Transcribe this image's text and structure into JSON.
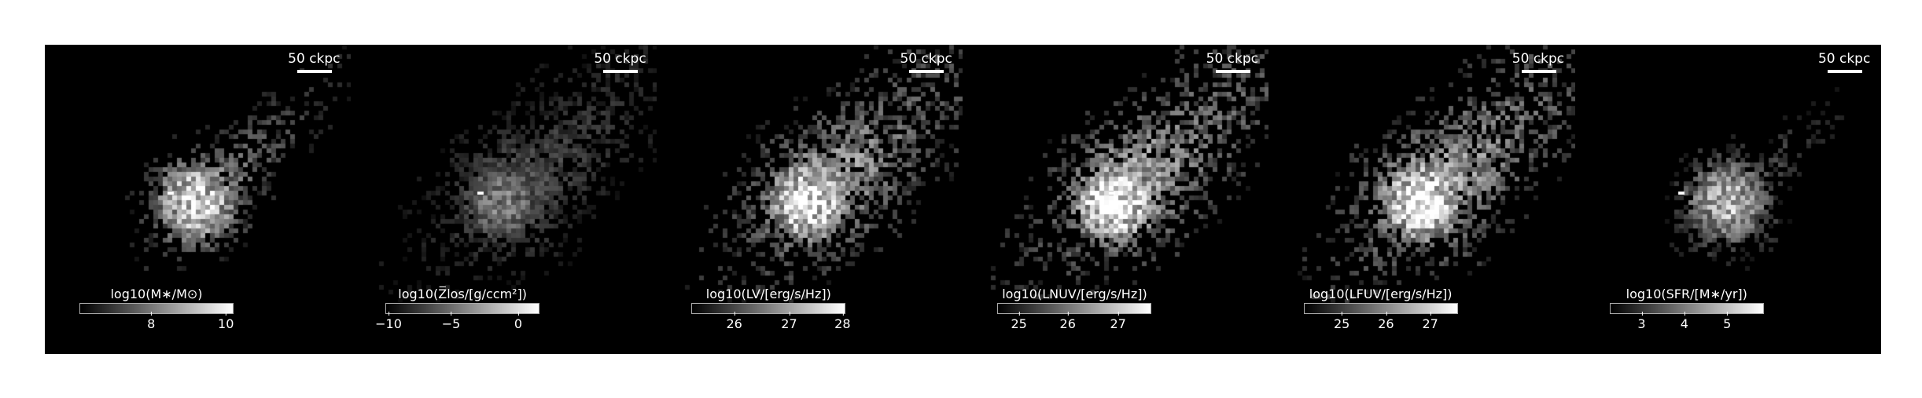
{
  "figure": {
    "panels": [
      {
        "id": "stellar-mass",
        "scalebar": "50 ckpc",
        "colorbar": {
          "label_main": "log10(M∗/M⊙)",
          "ticks": [
            "8",
            "10"
          ]
        },
        "brightness": 0.75,
        "spread": 0.55,
        "core": 1.0
      },
      {
        "id": "metallicity",
        "scalebar": "50 ckpc",
        "colorbar": {
          "label_main": "log10(Z̅los/[g/ccm²])",
          "ticks": [
            "−10",
            "−5",
            "0"
          ]
        },
        "brightness": 0.45,
        "spread": 1.0,
        "core": 0.9
      },
      {
        "id": "v-band",
        "scalebar": "50 ckpc",
        "colorbar": {
          "label_main": "log10(LV/[erg/s/Hz])",
          "ticks": [
            "26",
            "27",
            "28"
          ]
        },
        "brightness": 0.85,
        "spread": 1.0,
        "core": 1.0
      },
      {
        "id": "nuv-band",
        "scalebar": "50 ckpc",
        "colorbar": {
          "label_main": "log10(LNUV/[erg/s/Hz])",
          "ticks": [
            "25",
            "26",
            "27"
          ]
        },
        "brightness": 0.9,
        "spread": 1.0,
        "core": 1.0
      },
      {
        "id": "fuv-band",
        "scalebar": "50 ckpc",
        "colorbar": {
          "label_main": "log10(LFUV/[erg/s/Hz])",
          "ticks": [
            "25",
            "26",
            "27"
          ]
        },
        "brightness": 0.9,
        "spread": 1.0,
        "core": 1.0
      },
      {
        "id": "sfr",
        "scalebar": "50 ckpc",
        "colorbar": {
          "label_main": "log10(SFR/[M∗/yr])",
          "ticks": [
            "3",
            "4",
            "5"
          ]
        },
        "brightness": 0.6,
        "spread": 0.35,
        "core": 1.0
      }
    ],
    "colormap": "grayscale",
    "background": "#000000"
  }
}
